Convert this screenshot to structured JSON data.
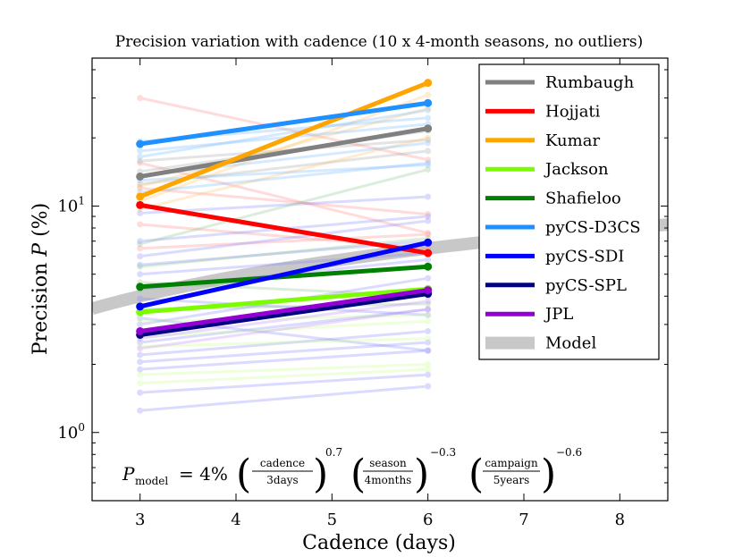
{
  "chart_data": {
    "type": "line",
    "title": "Precision variation with cadence (10 x 4-month seasons, no outliers)",
    "xlabel": "Cadence (days)",
    "ylabel_prefix": "Precision",
    "ylabel_var": "P",
    "ylabel_unit": "(%)",
    "xscale": "linear",
    "yscale": "log",
    "xlim": [
      2.5,
      8.5
    ],
    "ylim": [
      0.5,
      45
    ],
    "x_ticks": [
      3,
      4,
      5,
      6,
      7,
      8
    ],
    "x_tick_labels": [
      "3",
      "4",
      "5",
      "6",
      "7",
      "8"
    ],
    "y_ticks": [
      1,
      10
    ],
    "y_tick_bases": [
      "10",
      "10"
    ],
    "y_tick_exps": [
      "0",
      "1"
    ],
    "legend_position": "top-right",
    "series": [
      {
        "name": "Rumbaugh",
        "color": "#808080",
        "x": [
          3,
          6
        ],
        "y": [
          13.5,
          22.0
        ]
      },
      {
        "name": "Hojjati",
        "color": "#ff0000",
        "x": [
          3,
          6
        ],
        "y": [
          10.1,
          6.2
        ]
      },
      {
        "name": "Kumar",
        "color": "#ffa500",
        "x": [
          3,
          6
        ],
        "y": [
          11.0,
          35.0
        ]
      },
      {
        "name": "Jackson",
        "color": "#7cfc00",
        "x": [
          3,
          6
        ],
        "y": [
          3.4,
          4.3
        ]
      },
      {
        "name": "Shafieloo",
        "color": "#008000",
        "x": [
          3,
          6
        ],
        "y": [
          4.4,
          5.4
        ]
      },
      {
        "name": "pyCS-D3CS",
        "color": "#1e90ff",
        "x": [
          3,
          6
        ],
        "y": [
          18.8,
          28.5
        ]
      },
      {
        "name": "pyCS-SDI",
        "color": "#0000ff",
        "x": [
          3,
          6
        ],
        "y": [
          3.6,
          6.9
        ]
      },
      {
        "name": "pyCS-SPL",
        "color": "#000080",
        "x": [
          3,
          6
        ],
        "y": [
          2.7,
          4.1
        ]
      },
      {
        "name": "JPL",
        "color": "#9400d3",
        "x": [
          3,
          6
        ],
        "y": [
          2.8,
          4.25
        ]
      }
    ],
    "model": {
      "name": "Model",
      "color": "#c8c8c8",
      "coefficient": 4,
      "exponent": 0.7,
      "base_cadence": 3,
      "x_range": [
        2.5,
        8.5
      ]
    },
    "faint_lines": [
      {
        "color": "#ff8080",
        "y": [
          30.0,
          16.0
        ]
      },
      {
        "color": "#ff8080",
        "y": [
          15.5,
          7.6
        ]
      },
      {
        "color": "#ff8080",
        "y": [
          12.0,
          9.2
        ]
      },
      {
        "color": "#ff8080",
        "y": [
          8.3,
          6.5
        ]
      },
      {
        "color": "#ff8080",
        "y": [
          6.5,
          7.5
        ]
      },
      {
        "color": "#a0a0a0",
        "y": [
          15.8,
          19.6
        ]
      },
      {
        "color": "#a0a0a0",
        "y": [
          14.2,
          21.5
        ]
      },
      {
        "color": "#a0a0a0",
        "y": [
          12.5,
          17.5
        ]
      },
      {
        "color": "#ffc060",
        "y": [
          12.2,
          27.0
        ]
      },
      {
        "color": "#ffc060",
        "y": [
          9.7,
          20.0
        ]
      },
      {
        "color": "#ffc060",
        "y": [
          10.5,
          31.0
        ]
      },
      {
        "color": "#6fb7ff",
        "y": [
          19.3,
          24.5
        ]
      },
      {
        "color": "#6fb7ff",
        "y": [
          13.6,
          19.0
        ]
      },
      {
        "color": "#6fb7ff",
        "y": [
          17.5,
          23.0
        ]
      },
      {
        "color": "#6fb7ff",
        "y": [
          11.5,
          15.5
        ]
      },
      {
        "color": "#6fb7ff",
        "y": [
          16.5,
          26.5
        ]
      },
      {
        "color": "#6fb7ff",
        "y": [
          13.0,
          15.2
        ]
      },
      {
        "color": "#8080ff",
        "y": [
          9.3,
          11.0
        ]
      },
      {
        "color": "#8080ff",
        "y": [
          7.0,
          9.0
        ]
      },
      {
        "color": "#8080ff",
        "y": [
          6.0,
          8.6
        ]
      },
      {
        "color": "#8080ff",
        "y": [
          5.5,
          7.0
        ]
      },
      {
        "color": "#8080ff",
        "y": [
          5.0,
          6.2
        ]
      },
      {
        "color": "#8080ff",
        "y": [
          4.3,
          5.8
        ]
      },
      {
        "color": "#8080ff",
        "y": [
          3.0,
          4.8
        ]
      },
      {
        "color": "#8080ff",
        "y": [
          2.5,
          3.5
        ]
      },
      {
        "color": "#8080ff",
        "y": [
          2.2,
          2.8
        ]
      },
      {
        "color": "#8080ff",
        "y": [
          2.05,
          2.5
        ]
      },
      {
        "color": "#8080ff",
        "y": [
          1.9,
          2.3
        ]
      },
      {
        "color": "#8080ff",
        "y": [
          1.5,
          1.8
        ]
      },
      {
        "color": "#8080ff",
        "y": [
          1.25,
          1.6
        ]
      },
      {
        "color": "#8080ff",
        "y": [
          3.2,
          2.3
        ]
      },
      {
        "color": "#8080ff",
        "y": [
          3.9,
          3.3
        ]
      },
      {
        "color": "#80c080",
        "y": [
          6.8,
          14.5
        ]
      },
      {
        "color": "#80c080",
        "y": [
          5.4,
          7.2
        ]
      },
      {
        "color": "#80c080",
        "y": [
          4.6,
          4.0
        ]
      },
      {
        "color": "#80c080",
        "y": [
          3.5,
          3.7
        ]
      },
      {
        "color": "#c0ff80",
        "y": [
          3.1,
          3.3
        ]
      },
      {
        "color": "#c0ff80",
        "y": [
          2.65,
          3.1
        ]
      },
      {
        "color": "#c0ff80",
        "y": [
          2.4,
          2.6
        ]
      },
      {
        "color": "#c0ff80",
        "y": [
          1.8,
          2.0
        ]
      },
      {
        "color": "#c0ff80",
        "y": [
          1.65,
          1.9
        ]
      },
      {
        "color": "#c080ff",
        "y": [
          2.6,
          3.8
        ]
      },
      {
        "color": "#c080ff",
        "y": [
          2.35,
          3.5
        ]
      }
    ],
    "formula": {
      "lhs_symbol": "P",
      "lhs_subscript": "model",
      "equals_text": "= 4%",
      "frac1_num": "cadence",
      "frac1_den": "3days",
      "exp1": "0.7",
      "frac2_num": "season",
      "frac2_den": "4months",
      "exp2": "−0.3",
      "frac3_num": "campaign",
      "frac3_den": "5years",
      "exp3": "−0.6"
    }
  }
}
